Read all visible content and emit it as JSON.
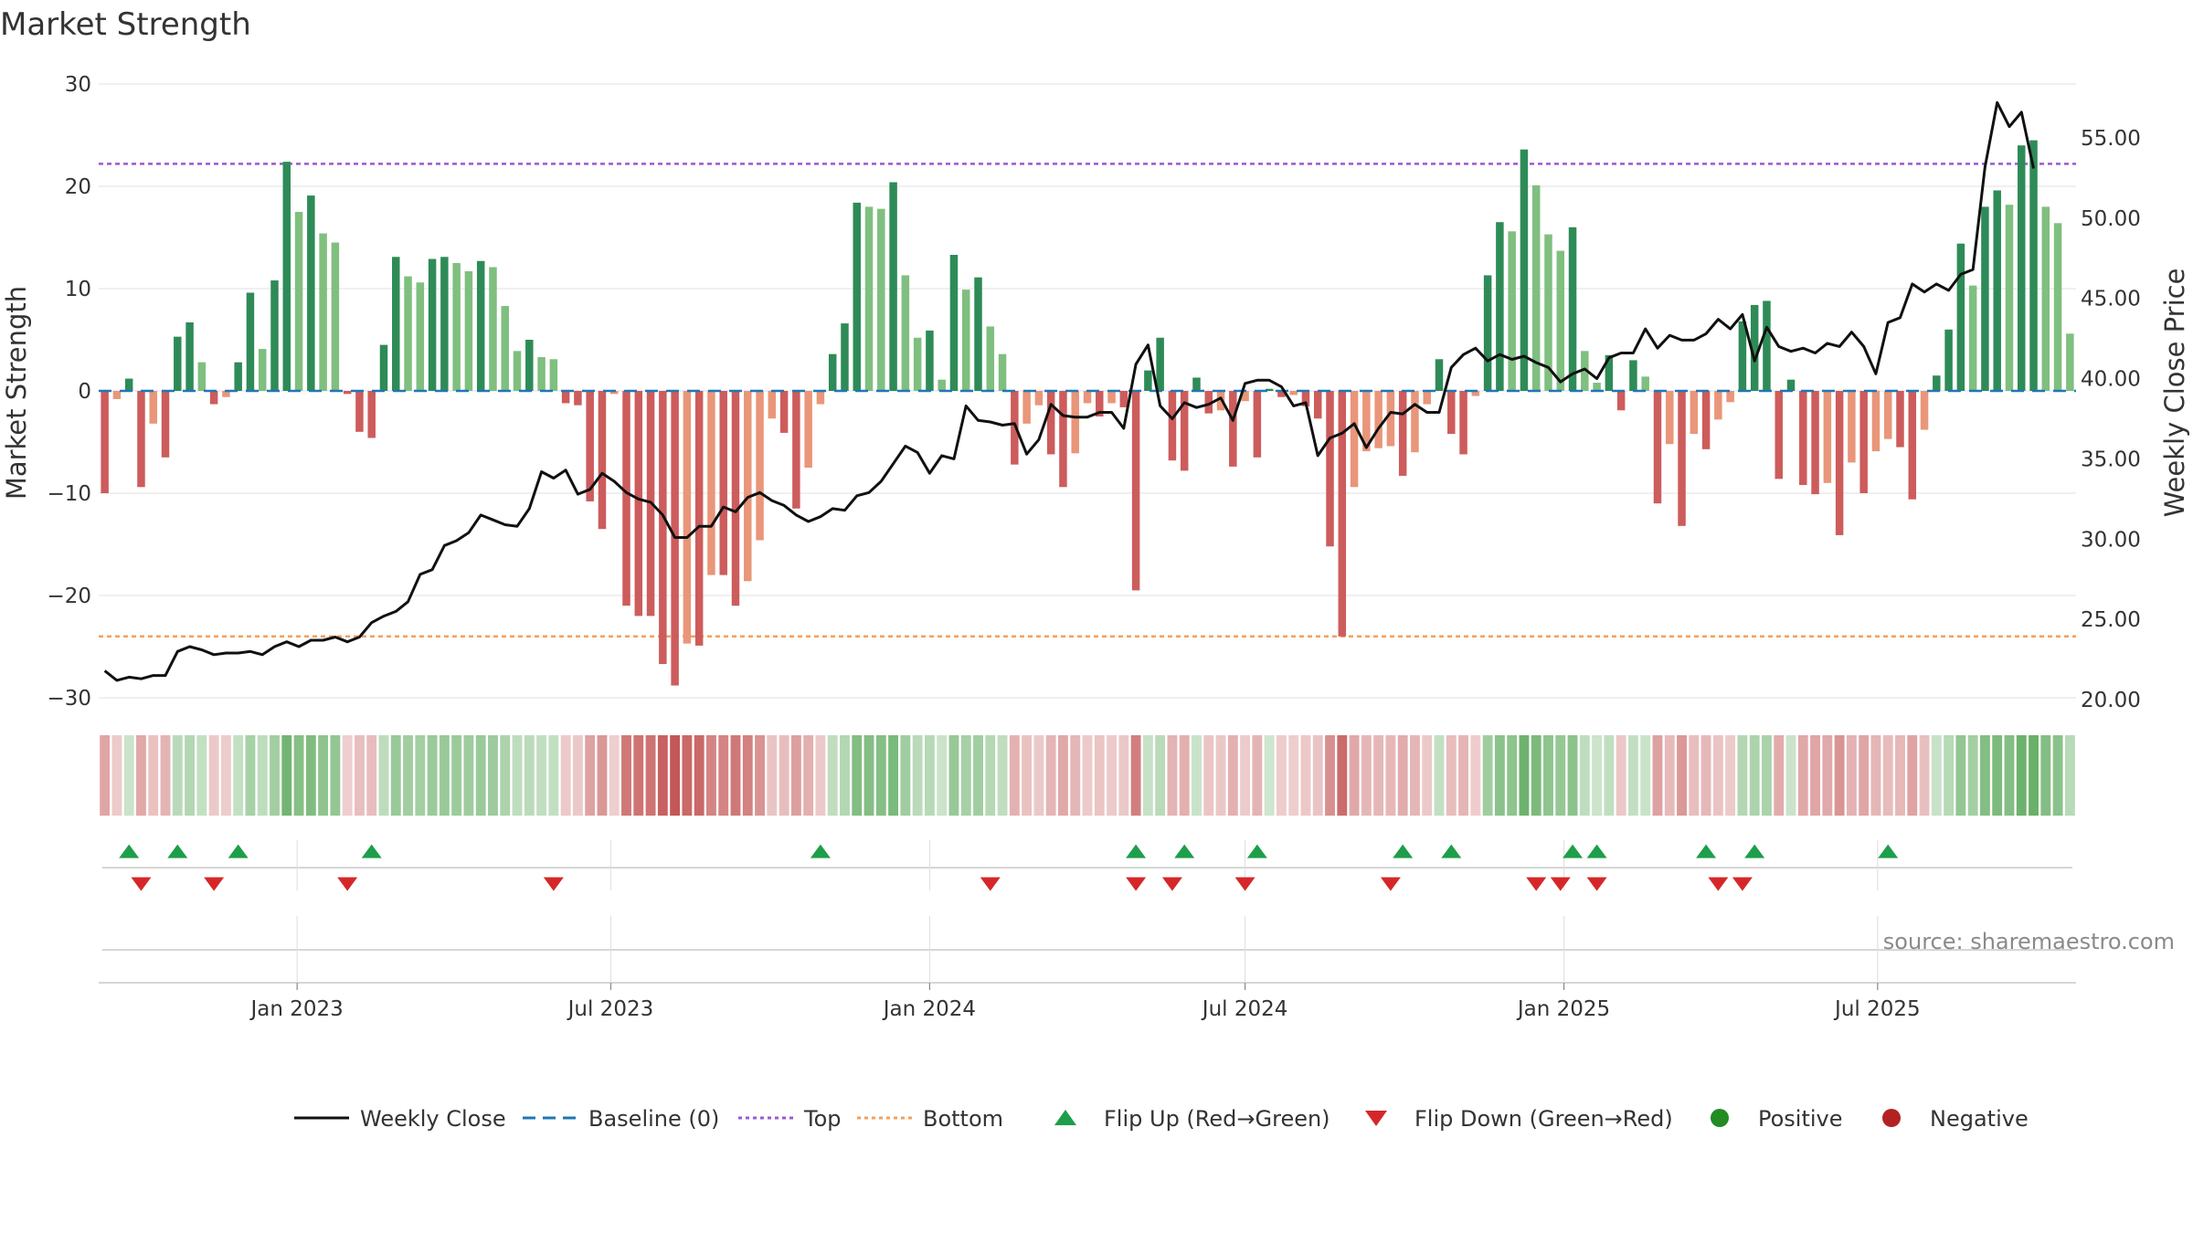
{
  "title": "Market Strength",
  "source_label": "source: sharemaestro.com",
  "colors": {
    "pos_strong": "#2e8b57",
    "pos_light": "#7fbf7f",
    "neg_strong": "#cd5c5c",
    "neg_light": "#e9967a",
    "close": "#111111",
    "baseline": "#1f77b4",
    "top": "#9b59d0",
    "bottom": "#f0a060",
    "flip_up": "#1e9e4a",
    "flip_down": "#d62728",
    "positive": "#228b22",
    "negative": "#b22222"
  },
  "legend": [
    {
      "kind": "line",
      "label": "Weekly Close",
      "color": "#111111",
      "dash": ""
    },
    {
      "kind": "line",
      "label": "Baseline (0)",
      "color": "#1f77b4",
      "dash": "14,8"
    },
    {
      "kind": "line",
      "label": "Top",
      "color": "#9b59d0",
      "dash": "4,4"
    },
    {
      "kind": "line",
      "label": "Bottom",
      "color": "#f0a060",
      "dash": "4,4"
    },
    {
      "kind": "tri-up",
      "label": "Flip Up (Red→Green)",
      "color": "#1e9e4a"
    },
    {
      "kind": "tri-down",
      "label": "Flip Down (Green→Red)",
      "color": "#d62728"
    },
    {
      "kind": "dot",
      "label": "Positive",
      "color": "#228b22"
    },
    {
      "kind": "dot",
      "label": "Negative",
      "color": "#b22222"
    }
  ],
  "chart_data": {
    "type": "bar",
    "title": "Market Strength",
    "x_start": "2022-09-12",
    "x_step_days": 7,
    "x_tick_labels": [
      "Jan 2023",
      "Jul 2023",
      "Jan 2024",
      "Jul 2024",
      "Jan 2025",
      "Jul 2025"
    ],
    "x_tick_dates": [
      "2023-01-01",
      "2023-07-01",
      "2024-01-01",
      "2024-07-01",
      "2025-01-01",
      "2025-07-01"
    ],
    "left_axis": {
      "label": "Market Strength",
      "ylim": [
        -30,
        30
      ],
      "ticks": [
        30,
        20,
        10,
        0,
        -10,
        -20,
        -30
      ]
    },
    "right_axis": {
      "label": "Weekly Close Price",
      "ylim": [
        20,
        55
      ],
      "ticks": [
        "55.00",
        "50.00",
        "45.00",
        "40.00",
        "35.00",
        "30.00",
        "25.00",
        "20.00"
      ]
    },
    "top_line": 22.2,
    "bottom_line": -24,
    "baseline": 0,
    "grid": true,
    "legend_position": "bottom",
    "strength": [
      -10,
      -0.8,
      1.2,
      -9.4,
      -3.2,
      -6.5,
      5.3,
      6.7,
      2.8,
      -1.3,
      -0.6,
      2.8,
      9.6,
      4.1,
      10.8,
      22.4,
      17.5,
      19.1,
      15.4,
      14.5,
      -0.3,
      -4,
      -4.6,
      4.5,
      13.1,
      11.2,
      10.6,
      12.9,
      13.1,
      12.5,
      11.7,
      12.7,
      12.1,
      8.3,
      3.9,
      5,
      3.3,
      3.1,
      -1.2,
      -1.4,
      -10.8,
      -13.5,
      -0.3,
      -21,
      -22,
      -22,
      -26.7,
      -28.8,
      -24.7,
      -24.9,
      -18,
      -18,
      -21,
      -18.6,
      -14.6,
      -2.7,
      -4.1,
      -11.5,
      -7.5,
      -1.3,
      3.6,
      6.6,
      18.4,
      18,
      17.8,
      20.4,
      11.3,
      5.2,
      5.9,
      1.1,
      13.3,
      9.9,
      11.1,
      6.3,
      3.6,
      -7.2,
      -3.2,
      -1.4,
      -6.2,
      -9.4,
      -6.1,
      -1.2,
      -2.5,
      -1.2,
      -1.6,
      -19.5,
      2,
      5.2,
      -6.8,
      -7.8,
      1.3,
      -2.2,
      -1.9,
      -7.4,
      -1,
      -6.5,
      0.2,
      -0.6,
      -0.4,
      -1.5,
      -2.7,
      -15.2,
      -24,
      -9.4,
      -5.9,
      -5.6,
      -5.4,
      -8.3,
      -6,
      -1.3,
      3.1,
      -4.2,
      -6.2,
      -0.5,
      11.3,
      16.5,
      15.6,
      23.6,
      20.1,
      15.3,
      13.7,
      16,
      3.9,
      0.8,
      3.5,
      -1.9,
      3,
      1.4,
      -11,
      -5.2,
      -13.2,
      -4.2,
      -5.7,
      -2.8,
      -1.1,
      6.8,
      8.4,
      8.8,
      -8.6,
      1.1,
      -9.2,
      -10.1,
      -9,
      -14.1,
      -7,
      -10,
      -5.9,
      -4.7,
      -5.5,
      -10.6,
      -3.8,
      1.5,
      6,
      14.4,
      10.3,
      18,
      19.6,
      18.2,
      24,
      24.5,
      18,
      16.4,
      5.6
    ],
    "weekly_close": [
      21.8,
      21.2,
      21.4,
      21.3,
      21.5,
      21.5,
      23,
      23.3,
      23.1,
      22.8,
      22.9,
      22.9,
      23,
      22.8,
      23.3,
      23.6,
      23.3,
      23.7,
      23.7,
      23.9,
      23.6,
      23.9,
      24.8,
      25.2,
      25.5,
      26.1,
      27.8,
      28.1,
      29.6,
      29.9,
      30.4,
      31.5,
      31.2,
      30.9,
      30.8,
      31.9,
      34.2,
      33.8,
      34.3,
      32.8,
      33.1,
      34.1,
      33.6,
      32.9,
      32.5,
      32.3,
      31.5,
      30.1,
      30.1,
      30.8,
      30.8,
      32,
      31.7,
      32.6,
      32.9,
      32.4,
      32.1,
      31.5,
      31.1,
      31.4,
      31.9,
      31.8,
      32.7,
      32.9,
      33.6,
      34.7,
      35.8,
      35.4,
      34.1,
      35.2,
      35,
      38.3,
      37.4,
      37.3,
      37.1,
      37.2,
      35.3,
      36.2,
      38.4,
      37.7,
      37.6,
      37.6,
      37.9,
      37.9,
      36.9,
      40.9,
      42.1,
      38.3,
      37.5,
      38.5,
      38.2,
      38.4,
      38.8,
      37.4,
      39.7,
      39.9,
      39.9,
      39.5,
      38.3,
      38.5,
      35.2,
      36.3,
      36.6,
      37.2,
      35.7,
      36.9,
      37.9,
      37.8,
      38.4,
      37.9,
      37.9,
      40.7,
      41.5,
      41.9,
      41.1,
      41.5,
      41.2,
      41.4,
      41,
      40.7,
      39.8,
      40.3,
      40.6,
      40,
      41.3,
      41.6,
      41.6,
      43.1,
      41.9,
      42.7,
      42.4,
      42.4,
      42.8,
      43.7,
      43.1,
      44,
      41.1,
      43.2,
      42,
      41.7,
      41.9,
      41.6,
      42.2,
      42,
      42.9,
      42,
      40.3,
      43.5,
      43.8,
      45.9,
      45.4,
      45.9,
      45.5,
      46.5,
      46.8,
      53.2,
      57.2,
      55.7,
      56.6,
      53.1
    ],
    "flip_up_weeks": [
      2,
      6,
      11,
      22,
      59,
      85,
      89,
      95,
      107,
      111,
      121,
      123,
      132,
      136,
      147
    ],
    "flip_down_weeks": [
      3,
      9,
      20,
      37,
      73,
      85,
      88,
      94,
      106,
      118,
      120,
      123,
      133,
      135
    ]
  }
}
